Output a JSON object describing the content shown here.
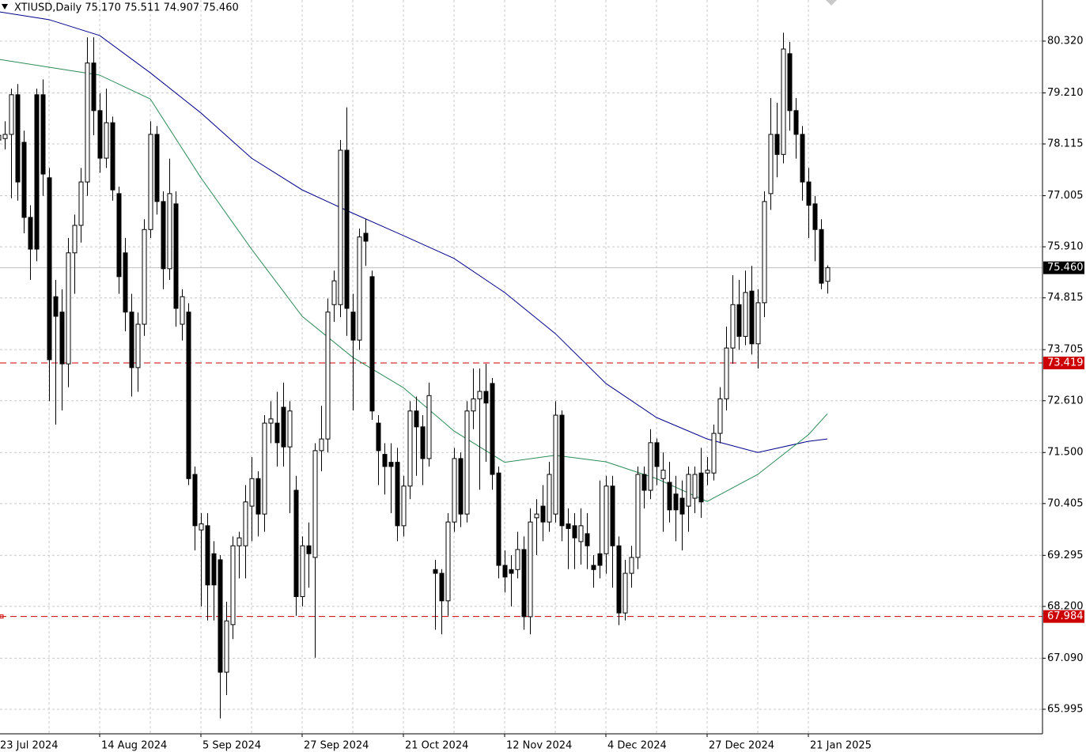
{
  "chart_data": {
    "type": "candlestick",
    "title": "XTIUSD,Daily  75.170 75.511 74.907 75.460",
    "ylim": [
      65.469,
      81.201
    ],
    "yticks": [
      {
        "value": 80.32,
        "label": "80.320"
      },
      {
        "value": 79.21,
        "label": "79.210"
      },
      {
        "value": 78.115,
        "label": "78.115"
      },
      {
        "value": 77.005,
        "label": "77.005"
      },
      {
        "value": 75.91,
        "label": "75.910"
      },
      {
        "value": 74.815,
        "label": "74.815"
      },
      {
        "value": 73.705,
        "label": "73.705"
      },
      {
        "value": 72.61,
        "label": "72.610"
      },
      {
        "value": 71.5,
        "label": "71.500"
      },
      {
        "value": 70.405,
        "label": "70.405"
      },
      {
        "value": 69.295,
        "label": "69.295"
      },
      {
        "value": 68.2,
        "label": "68.200"
      },
      {
        "value": 67.09,
        "label": "67.090"
      },
      {
        "value": 65.995,
        "label": "65.995"
      }
    ],
    "grid": true,
    "up_color": "#ffffff",
    "down_color": "#000000",
    "categories": [
      "23 Jul 2024",
      null,
      null,
      null,
      null,
      null,
      null,
      null,
      null,
      null,
      null,
      null,
      null,
      null,
      null,
      null,
      "14 Aug 2024",
      null,
      null,
      null,
      null,
      null,
      null,
      null,
      null,
      null,
      null,
      null,
      null,
      null,
      null,
      null,
      "5 Sep 2024",
      null,
      null,
      null,
      null,
      null,
      null,
      null,
      null,
      null,
      null,
      null,
      null,
      null,
      null,
      null,
      "27 Sep 2024",
      null,
      null,
      null,
      null,
      null,
      null,
      null,
      null,
      null,
      null,
      null,
      null,
      null,
      null,
      null,
      "21 Oct 2024",
      null,
      null,
      null,
      null,
      null,
      null,
      null,
      null,
      null,
      null,
      null,
      null,
      null,
      null,
      null,
      "12 Nov 2024",
      null,
      null,
      null,
      null,
      null,
      null,
      null,
      null,
      null,
      null,
      null,
      null,
      null,
      null,
      null,
      "4 Dec 2024",
      null,
      null,
      null,
      null,
      null,
      null,
      null,
      null,
      null,
      null,
      null,
      null,
      null,
      null,
      null,
      "27 Dec 2024",
      null,
      null,
      null,
      null,
      null,
      null,
      null,
      null,
      null,
      null,
      null,
      null,
      null,
      null,
      null,
      "21 Jan 2025",
      null,
      null,
      null
    ],
    "open": [
      78.2,
      78.23,
      78.32,
      79.17,
      78.15,
      76.54,
      79.17,
      79.17,
      77.39,
      74.84,
      74.51,
      73.4,
      75.78,
      76.37,
      77.3,
      79.85,
      78.83,
      77.81,
      78.57,
      77.05,
      75.78,
      74.51,
      73.32,
      74.25,
      76.28,
      78.32,
      76.88,
      75.44,
      76.83,
      74.25,
      74.51,
      71.03,
      69.84,
      69.93,
      69.33,
      69.2,
      66.79,
      67.81,
      69.5,
      69.5,
      70.35,
      70.94,
      70.18,
      72.13,
      72.13,
      72.47,
      71.62,
      70.69,
      68.41,
      69.5,
      69.25,
      71.54,
      71.79,
      74.67,
      74.67,
      77.98,
      74.51,
      73.91,
      76.2,
      75.27,
      72.13,
      71.46,
      71.29,
      71.29,
      69.93,
      70.78,
      72.39,
      72.05,
      71.37,
      68.99,
      68.91,
      68.32,
      70.01,
      71.37,
      70.18,
      72.39,
      72.65,
      72.81,
      72.98,
      71.06,
      69.08,
      68.99,
      68.99,
      69.42,
      67.98,
      70.1,
      70.35,
      70.01,
      70.18,
      72.3,
      69.97,
      69.93,
      69.59,
      69.76,
      69.08,
      69.33,
      69.33,
      70.78,
      69.5,
      68.06,
      68.91,
      69.25,
      71.03,
      70.69,
      71.71,
      70.94,
      70.86,
      70.61,
      70.52,
      70.35,
      70.52,
      71.06,
      71.06,
      71.06,
      71.91,
      72.65,
      73.74,
      74.67,
      73.99,
      74.96,
      73.83,
      74.71,
      77.05,
      78.32,
      77.89,
      80.05,
      78.83,
      78.32,
      77.3,
      76.83,
      76.28,
      75.17
    ],
    "high": [
      78.5,
      78.6,
      79.3,
      79.4,
      78.4,
      76.8,
      79.3,
      79.5,
      77.6,
      75.2,
      75.0,
      76.1,
      76.6,
      77.6,
      80.4,
      80.4,
      79.2,
      79.3,
      78.7,
      77.2,
      76.1,
      74.9,
      74.5,
      76.5,
      78.6,
      78.5,
      77.1,
      77.8,
      77.1,
      75.0,
      74.7,
      71.2,
      70.2,
      70.2,
      69.6,
      69.3,
      68.3,
      69.7,
      69.8,
      70.8,
      71.4,
      71.1,
      72.3,
      72.6,
      72.8,
      73.0,
      72.6,
      71.0,
      69.7,
      70.0,
      71.7,
      72.5,
      74.8,
      75.4,
      78.2,
      78.9,
      74.9,
      76.3,
      76.5,
      75.4,
      72.3,
      71.7,
      71.7,
      71.6,
      71.0,
      72.6,
      72.7,
      72.3,
      73.0,
      69.2,
      69.0,
      70.2,
      71.6,
      71.5,
      72.6,
      73.3,
      73.3,
      73.4,
      73.1,
      71.2,
      69.4,
      69.3,
      69.8,
      69.7,
      70.3,
      70.5,
      70.8,
      71.3,
      72.6,
      72.4,
      70.3,
      70.2,
      70.3,
      70.2,
      69.3,
      70.9,
      71.0,
      71.0,
      69.7,
      69.2,
      69.5,
      71.2,
      71.2,
      72.0,
      71.8,
      71.5,
      71.3,
      71.0,
      70.9,
      71.2,
      71.2,
      71.6,
      71.4,
      72.1,
      72.9,
      74.2,
      75.3,
      75.2,
      75.4,
      75.5,
      75.0,
      77.1,
      79.1,
      79.0,
      80.5,
      80.3,
      79.1,
      78.5,
      77.6,
      77.0,
      76.5,
      75.511
    ],
    "low": [
      77.9,
      78.0,
      76.95,
      76.9,
      76.2,
      75.2,
      75.6,
      77.0,
      72.6,
      72.1,
      72.4,
      72.9,
      74.9,
      76.0,
      77.0,
      78.3,
      77.5,
      77.6,
      76.9,
      74.9,
      74.1,
      72.7,
      72.8,
      74.0,
      76.1,
      76.6,
      75.0,
      75.2,
      74.2,
      73.9,
      70.8,
      69.4,
      68.2,
      67.9,
      67.9,
      65.8,
      66.3,
      67.5,
      68.8,
      68.8,
      69.6,
      69.7,
      69.8,
      71.7,
      71.2,
      71.2,
      70.2,
      68.0,
      68.2,
      68.6,
      67.1,
      71.1,
      71.5,
      74.3,
      74.4,
      74.0,
      72.4,
      73.7,
      75.5,
      72.2,
      70.8,
      70.6,
      70.2,
      69.6,
      69.7,
      70.5,
      71.0,
      70.8,
      71.2,
      67.7,
      67.6,
      68.0,
      69.8,
      69.9,
      70.0,
      72.0,
      70.7,
      71.3,
      70.7,
      68.8,
      68.5,
      68.2,
      68.8,
      67.7,
      67.6,
      69.3,
      69.6,
      69.8,
      70.0,
      69.6,
      69.0,
      69.0,
      69.1,
      69.0,
      68.6,
      68.8,
      68.9,
      68.6,
      67.8,
      67.9,
      68.6,
      69.0,
      70.3,
      70.5,
      70.8,
      69.8,
      70.0,
      69.6,
      69.4,
      69.8,
      70.2,
      70.1,
      70.8,
      70.9,
      71.7,
      72.4,
      73.4,
      73.7,
      73.8,
      73.6,
      73.3,
      74.4,
      76.7,
      77.4,
      77.7,
      78.4,
      77.8,
      76.9,
      76.1,
      75.6,
      75.0,
      74.907
    ],
    "close": [
      78.3,
      78.32,
      79.17,
      77.3,
      76.54,
      75.86,
      75.86,
      77.47,
      73.49,
      74.42,
      73.4,
      75.78,
      76.37,
      77.3,
      79.85,
      78.83,
      77.81,
      78.57,
      77.13,
      75.27,
      74.51,
      73.32,
      74.25,
      76.28,
      78.32,
      76.88,
      75.44,
      77.05,
      74.59,
      74.84,
      70.94,
      69.93,
      69.97,
      68.66,
      68.66,
      66.79,
      67.89,
      69.5,
      69.67,
      70.44,
      70.94,
      70.18,
      72.13,
      72.22,
      71.71,
      71.62,
      72.39,
      68.41,
      69.5,
      69.33,
      71.54,
      71.79,
      74.51,
      75.18,
      77.98,
      74.59,
      73.91,
      76.12,
      76.03,
      72.39,
      71.54,
      71.2,
      71.2,
      69.93,
      70.78,
      72.39,
      72.05,
      71.37,
      72.72,
      68.91,
      68.32,
      70.01,
      71.37,
      70.18,
      72.39,
      72.65,
      72.81,
      72.56,
      71.03,
      69.08,
      68.83,
      68.91,
      69.42,
      67.98,
      70.01,
      70.18,
      70.01,
      71.03,
      72.3,
      69.93,
      69.87,
      69.67,
      69.93,
      69.5,
      68.99,
      69.08,
      70.78,
      69.5,
      68.06,
      68.91,
      69.25,
      71.03,
      70.69,
      71.71,
      71.2,
      71.12,
      70.27,
      70.27,
      70.18,
      71.03,
      71.03,
      70.44,
      71.12,
      71.91,
      72.65,
      73.74,
      74.67,
      73.99,
      74.93,
      73.83,
      74.71,
      76.88,
      78.32,
      77.89,
      80.15,
      78.83,
      78.32,
      77.3,
      76.8,
      76.28,
      75.13,
      75.46
    ],
    "moving_averages": [
      {
        "color": "#00008b",
        "x": [
          0,
          8,
          16,
          24,
          32,
          40,
          48,
          56,
          64,
          72,
          80,
          88,
          96,
          104,
          112,
          120,
          128,
          131
        ],
        "values": [
          80.95,
          80.78,
          80.44,
          79.64,
          78.78,
          77.81,
          77.13,
          76.63,
          76.15,
          75.66,
          74.93,
          74.05,
          72.98,
          72.25,
          71.79,
          71.5,
          71.74,
          71.79
        ]
      },
      {
        "color": "#2e8b57",
        "x": [
          0,
          8,
          16,
          24,
          32,
          40,
          48,
          56,
          64,
          72,
          80,
          88,
          96,
          104,
          112,
          120,
          128,
          131
        ],
        "values": [
          79.93,
          79.76,
          79.59,
          79.08,
          77.39,
          75.86,
          74.42,
          73.54,
          72.89,
          71.96,
          71.29,
          71.44,
          71.3,
          70.94,
          70.45,
          71.03,
          71.88,
          72.33
        ]
      }
    ],
    "current_price": {
      "value": 75.46,
      "label": "75.460"
    },
    "levels": [
      {
        "value": 73.419,
        "label": "73.419",
        "color": "#cc0000"
      },
      {
        "value": 67.984,
        "label": "67.984",
        "color": "#cc0000"
      }
    ]
  }
}
